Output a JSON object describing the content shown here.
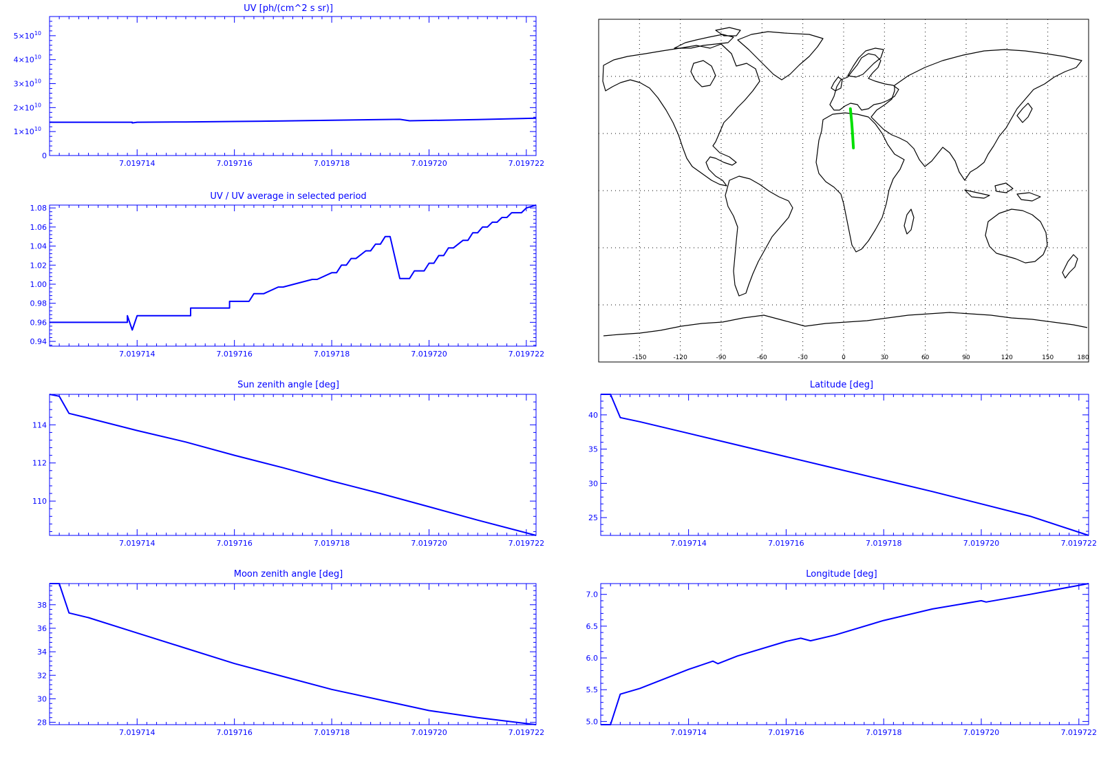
{
  "chart_data": [
    {
      "type": "line",
      "id": "uv",
      "title": "UV [ph/(cm^2 s sr)]",
      "xticks": [
        "7.019714",
        "7.019716",
        "7.019718",
        "7.019720",
        "7.019722"
      ],
      "xtick_values": [
        7.019714,
        7.019716,
        7.019718,
        7.01972,
        7.019722
      ],
      "xlim": [
        7.0197122,
        7.0197222
      ],
      "ylim": [
        0,
        58000000000
      ],
      "yticks": [
        {
          "value": 0,
          "mantissa": "0"
        },
        {
          "value": 10000000000,
          "mantissa": "1×10",
          "exp": "10"
        },
        {
          "value": 20000000000,
          "mantissa": "2×10",
          "exp": "10"
        },
        {
          "value": 30000000000,
          "mantissa": "3×10",
          "exp": "10"
        },
        {
          "value": 40000000000,
          "mantissa": "4×10",
          "exp": "10"
        },
        {
          "value": 50000000000,
          "mantissa": "5×10",
          "exp": "10"
        }
      ],
      "x": [
        7.0197122,
        7.0197139,
        7.0197139,
        7.019714,
        7.019715,
        7.019716,
        7.019717,
        7.019718,
        7.019719,
        7.0197194,
        7.0197196,
        7.019721,
        7.0197222
      ],
      "y": [
        13900000000,
        13900000000,
        13600000000,
        13900000000,
        14000000000,
        14200000000,
        14400000000,
        14700000000,
        15000000000,
        15100000000,
        14500000000,
        15000000000,
        15600000000
      ]
    },
    {
      "type": "line",
      "id": "uv-ratio",
      "title": "UV / UV average in selected period",
      "xticks": [
        "7.019714",
        "7.019716",
        "7.019718",
        "7.019720",
        "7.019722"
      ],
      "xtick_values": [
        7.019714,
        7.019716,
        7.019718,
        7.01972,
        7.019722
      ],
      "xlim": [
        7.0197122,
        7.0197222
      ],
      "ylim": [
        0.935,
        1.083
      ],
      "yticks": [
        {
          "value": 0.94,
          "label": "0.94"
        },
        {
          "value": 0.96,
          "label": "0.96"
        },
        {
          "value": 0.98,
          "label": "0.98"
        },
        {
          "value": 1.0,
          "label": "1.00"
        },
        {
          "value": 1.02,
          "label": "1.02"
        },
        {
          "value": 1.04,
          "label": "1.04"
        },
        {
          "value": 1.06,
          "label": "1.06"
        },
        {
          "value": 1.08,
          "label": "1.08"
        }
      ],
      "x": [
        7.0197122,
        7.0197138,
        7.0197138,
        7.0197139,
        7.019714,
        7.0197151,
        7.0197151,
        7.0197159,
        7.0197159,
        7.0197163,
        7.0197164,
        7.0197166,
        7.0197169,
        7.019717,
        7.0197176,
        7.0197177,
        7.019718,
        7.0197181,
        7.0197182,
        7.0197183,
        7.0197184,
        7.0197185,
        7.0197187,
        7.0197188,
        7.0197189,
        7.019719,
        7.0197191,
        7.0197192,
        7.0197194,
        7.0197196,
        7.0197197,
        7.0197199,
        7.01972,
        7.0197201,
        7.0197202,
        7.0197203,
        7.0197204,
        7.0197205,
        7.0197207,
        7.0197208,
        7.0197209,
        7.019721,
        7.0197211,
        7.0197212,
        7.0197213,
        7.0197214,
        7.0197215,
        7.0197216,
        7.0197217,
        7.0197219,
        7.019722,
        7.0197222
      ],
      "y": [
        0.96,
        0.96,
        0.967,
        0.952,
        0.967,
        0.967,
        0.975,
        0.975,
        0.982,
        0.982,
        0.99,
        0.99,
        0.997,
        0.997,
        1.005,
        1.005,
        1.012,
        1.012,
        1.02,
        1.02,
        1.027,
        1.027,
        1.035,
        1.035,
        1.042,
        1.042,
        1.05,
        1.05,
        1.006,
        1.006,
        1.014,
        1.014,
        1.022,
        1.022,
        1.03,
        1.03,
        1.038,
        1.038,
        1.046,
        1.046,
        1.054,
        1.054,
        1.06,
        1.06,
        1.065,
        1.065,
        1.07,
        1.07,
        1.075,
        1.075,
        1.08,
        1.083
      ]
    },
    {
      "type": "line",
      "id": "sun-zenith",
      "title": "Sun zenith angle [deg]",
      "xticks": [
        "7.019714",
        "7.019716",
        "7.019718",
        "7.019720",
        "7.019722"
      ],
      "xtick_values": [
        7.019714,
        7.019716,
        7.019718,
        7.01972,
        7.019722
      ],
      "xlim": [
        7.0197122,
        7.0197222
      ],
      "ylim": [
        108.2,
        115.6
      ],
      "yticks": [
        {
          "value": 110,
          "label": "110"
        },
        {
          "value": 112,
          "label": "112"
        },
        {
          "value": 114,
          "label": "114"
        }
      ],
      "x": [
        7.0197122,
        7.0197124,
        7.0197126,
        7.019713,
        7.019714,
        7.019715,
        7.019716,
        7.019717,
        7.019718,
        7.019719,
        7.01972,
        7.019721,
        7.0197222
      ],
      "y": [
        115.6,
        115.5,
        114.6,
        114.35,
        113.7,
        113.1,
        112.4,
        111.75,
        111.05,
        110.4,
        109.7,
        109.0,
        108.2
      ]
    },
    {
      "type": "line",
      "id": "latitude",
      "title": "Latitude [deg]",
      "xticks": [
        "7.019714",
        "7.019716",
        "7.019718",
        "7.019720",
        "7.019722"
      ],
      "xtick_values": [
        7.019714,
        7.019716,
        7.019718,
        7.01972,
        7.019722
      ],
      "xlim": [
        7.0197122,
        7.0197222
      ],
      "ylim": [
        22.4,
        43.0
      ],
      "yticks": [
        {
          "value": 25,
          "label": "25"
        },
        {
          "value": 30,
          "label": "30"
        },
        {
          "value": 35,
          "label": "35"
        },
        {
          "value": 40,
          "label": "40"
        }
      ],
      "x": [
        7.0197122,
        7.0197124,
        7.0197126,
        7.019713,
        7.019714,
        7.019715,
        7.019716,
        7.019717,
        7.019718,
        7.019719,
        7.01972,
        7.019721,
        7.0197222
      ],
      "y": [
        43.0,
        43.0,
        39.6,
        39.0,
        37.3,
        35.6,
        33.9,
        32.2,
        30.5,
        28.8,
        27.0,
        25.2,
        22.4
      ]
    },
    {
      "type": "line",
      "id": "moon-zenith",
      "title": "Moon zenith angle [deg]",
      "xticks": [
        "7.019714",
        "7.019716",
        "7.019718",
        "7.019720",
        "7.019722"
      ],
      "xtick_values": [
        7.019714,
        7.019716,
        7.019718,
        7.01972,
        7.019722
      ],
      "xlim": [
        7.0197122,
        7.0197222
      ],
      "ylim": [
        27.8,
        39.8
      ],
      "yticks": [
        {
          "value": 28,
          "label": "28"
        },
        {
          "value": 30,
          "label": "30"
        },
        {
          "value": 32,
          "label": "32"
        },
        {
          "value": 34,
          "label": "34"
        },
        {
          "value": 36,
          "label": "36"
        },
        {
          "value": 38,
          "label": "38"
        }
      ],
      "x": [
        7.0197122,
        7.0197124,
        7.0197126,
        7.019713,
        7.019714,
        7.019715,
        7.019716,
        7.019717,
        7.019718,
        7.019719,
        7.01972,
        7.019721,
        7.0197222
      ],
      "y": [
        39.8,
        39.8,
        37.3,
        36.9,
        35.6,
        34.3,
        33.0,
        31.9,
        30.8,
        29.9,
        29.0,
        28.4,
        27.8
      ]
    },
    {
      "type": "line",
      "id": "longitude",
      "title": "Longitude [deg]",
      "xticks": [
        "7.019714",
        "7.019716",
        "7.019718",
        "7.019720",
        "7.019722"
      ],
      "xtick_values": [
        7.019714,
        7.019716,
        7.019718,
        7.01972,
        7.019722
      ],
      "xlim": [
        7.0197122,
        7.0197222
      ],
      "ylim": [
        4.95,
        7.17
      ],
      "yticks": [
        {
          "value": 5.0,
          "label": "5.0"
        },
        {
          "value": 5.5,
          "label": "5.5"
        },
        {
          "value": 6.0,
          "label": "6.0"
        },
        {
          "value": 6.5,
          "label": "6.5"
        },
        {
          "value": 7.0,
          "label": "7.0"
        }
      ],
      "x": [
        7.0197122,
        7.0197124,
        7.0197126,
        7.019713,
        7.019714,
        7.0197145,
        7.0197146,
        7.019715,
        7.019716,
        7.0197163,
        7.0197165,
        7.019717,
        7.019718,
        7.019719,
        7.01972,
        7.0197201,
        7.019721,
        7.0197222
      ],
      "y": [
        4.95,
        4.95,
        5.43,
        5.52,
        5.82,
        5.95,
        5.91,
        6.03,
        6.26,
        6.31,
        6.27,
        6.36,
        6.59,
        6.77,
        6.9,
        6.88,
        7.0,
        7.17
      ]
    }
  ],
  "map": {
    "xtick_labels": [
      "-150",
      "-120",
      "-90",
      "-60",
      "-30",
      "0",
      "30",
      "60",
      "90",
      "120",
      "150",
      "180"
    ],
    "xtick_values": [
      -150,
      -120,
      -90,
      -60,
      -30,
      0,
      30,
      60,
      90,
      120,
      150,
      180
    ],
    "lonlim": [
      -180,
      180
    ],
    "latlim": [
      -90,
      90
    ],
    "grid_lon": [
      -150,
      -120,
      -90,
      -60,
      -30,
      0,
      30,
      60,
      90,
      120,
      150
    ],
    "grid_lat": [
      -60,
      -30,
      0,
      30,
      60
    ],
    "track": {
      "color": "#00e000",
      "lon": [
        4.95,
        5.43,
        5.95,
        6.5,
        7.17
      ],
      "lat": [
        43.0,
        39.6,
        35.6,
        30.0,
        22.4
      ]
    }
  }
}
